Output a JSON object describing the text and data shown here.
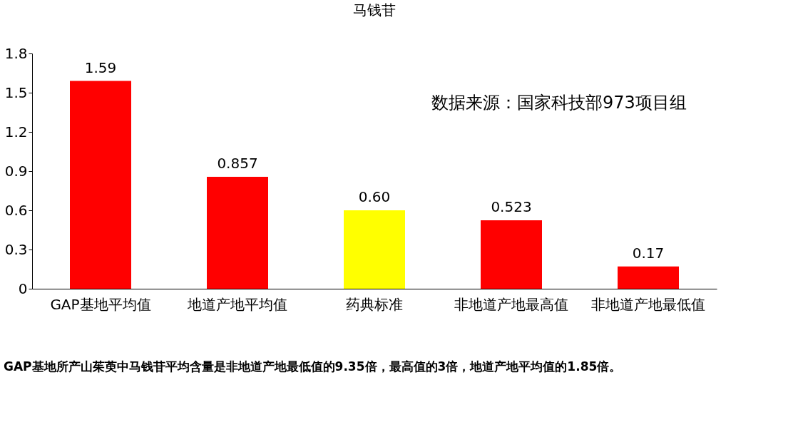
{
  "chart_data": {
    "type": "bar",
    "title": "马钱苷",
    "categories": [
      "GAP基地平均值",
      "地道产地平均值",
      "药典标准",
      "非地道产地最高值",
      "非地道产地最低值"
    ],
    "values": [
      1.59,
      0.857,
      0.6,
      0.523,
      0.17
    ],
    "value_labels": [
      "1.59",
      "0.857",
      "0.60",
      "0.523",
      "0.17"
    ],
    "colors": [
      "#ff0000",
      "#ff0000",
      "#ffff00",
      "#ff0000",
      "#ff0000"
    ],
    "ylim": [
      0,
      1.8
    ],
    "yticks": [
      0,
      0.3,
      0.6,
      0.9,
      1.2,
      1.5,
      1.8
    ],
    "grid": false,
    "annotations": [
      "数据来源：国家科技部973项目组",
      "GAP基地所产山茱萸中马钱苷平均含量是非地道产地最低值的9.35倍，最高值的3倍，地道产地平均值的1.85倍。"
    ]
  }
}
